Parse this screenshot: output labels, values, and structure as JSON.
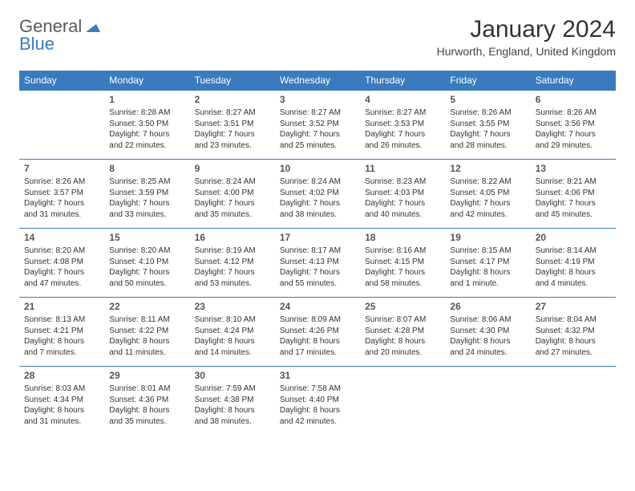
{
  "logo": {
    "general": "General",
    "blue": "Blue"
  },
  "title": {
    "month": "January 2024",
    "location": "Hurworth, England, United Kingdom"
  },
  "colors": {
    "accent": "#3a7bbf",
    "text": "#333333",
    "headerText": "#ffffff"
  },
  "dayHeaders": [
    "Sunday",
    "Monday",
    "Tuesday",
    "Wednesday",
    "Thursday",
    "Friday",
    "Saturday"
  ],
  "weeks": [
    [
      null,
      {
        "n": "1",
        "sr": "Sunrise: 8:28 AM",
        "ss": "Sunset: 3:50 PM",
        "d1": "Daylight: 7 hours",
        "d2": "and 22 minutes."
      },
      {
        "n": "2",
        "sr": "Sunrise: 8:27 AM",
        "ss": "Sunset: 3:51 PM",
        "d1": "Daylight: 7 hours",
        "d2": "and 23 minutes."
      },
      {
        "n": "3",
        "sr": "Sunrise: 8:27 AM",
        "ss": "Sunset: 3:52 PM",
        "d1": "Daylight: 7 hours",
        "d2": "and 25 minutes."
      },
      {
        "n": "4",
        "sr": "Sunrise: 8:27 AM",
        "ss": "Sunset: 3:53 PM",
        "d1": "Daylight: 7 hours",
        "d2": "and 26 minutes."
      },
      {
        "n": "5",
        "sr": "Sunrise: 8:26 AM",
        "ss": "Sunset: 3:55 PM",
        "d1": "Daylight: 7 hours",
        "d2": "and 28 minutes."
      },
      {
        "n": "6",
        "sr": "Sunrise: 8:26 AM",
        "ss": "Sunset: 3:56 PM",
        "d1": "Daylight: 7 hours",
        "d2": "and 29 minutes."
      }
    ],
    [
      {
        "n": "7",
        "sr": "Sunrise: 8:26 AM",
        "ss": "Sunset: 3:57 PM",
        "d1": "Daylight: 7 hours",
        "d2": "and 31 minutes."
      },
      {
        "n": "8",
        "sr": "Sunrise: 8:25 AM",
        "ss": "Sunset: 3:59 PM",
        "d1": "Daylight: 7 hours",
        "d2": "and 33 minutes."
      },
      {
        "n": "9",
        "sr": "Sunrise: 8:24 AM",
        "ss": "Sunset: 4:00 PM",
        "d1": "Daylight: 7 hours",
        "d2": "and 35 minutes."
      },
      {
        "n": "10",
        "sr": "Sunrise: 8:24 AM",
        "ss": "Sunset: 4:02 PM",
        "d1": "Daylight: 7 hours",
        "d2": "and 38 minutes."
      },
      {
        "n": "11",
        "sr": "Sunrise: 8:23 AM",
        "ss": "Sunset: 4:03 PM",
        "d1": "Daylight: 7 hours",
        "d2": "and 40 minutes."
      },
      {
        "n": "12",
        "sr": "Sunrise: 8:22 AM",
        "ss": "Sunset: 4:05 PM",
        "d1": "Daylight: 7 hours",
        "d2": "and 42 minutes."
      },
      {
        "n": "13",
        "sr": "Sunrise: 8:21 AM",
        "ss": "Sunset: 4:06 PM",
        "d1": "Daylight: 7 hours",
        "d2": "and 45 minutes."
      }
    ],
    [
      {
        "n": "14",
        "sr": "Sunrise: 8:20 AM",
        "ss": "Sunset: 4:08 PM",
        "d1": "Daylight: 7 hours",
        "d2": "and 47 minutes."
      },
      {
        "n": "15",
        "sr": "Sunrise: 8:20 AM",
        "ss": "Sunset: 4:10 PM",
        "d1": "Daylight: 7 hours",
        "d2": "and 50 minutes."
      },
      {
        "n": "16",
        "sr": "Sunrise: 8:19 AM",
        "ss": "Sunset: 4:12 PM",
        "d1": "Daylight: 7 hours",
        "d2": "and 53 minutes."
      },
      {
        "n": "17",
        "sr": "Sunrise: 8:17 AM",
        "ss": "Sunset: 4:13 PM",
        "d1": "Daylight: 7 hours",
        "d2": "and 55 minutes."
      },
      {
        "n": "18",
        "sr": "Sunrise: 8:16 AM",
        "ss": "Sunset: 4:15 PM",
        "d1": "Daylight: 7 hours",
        "d2": "and 58 minutes."
      },
      {
        "n": "19",
        "sr": "Sunrise: 8:15 AM",
        "ss": "Sunset: 4:17 PM",
        "d1": "Daylight: 8 hours",
        "d2": "and 1 minute."
      },
      {
        "n": "20",
        "sr": "Sunrise: 8:14 AM",
        "ss": "Sunset: 4:19 PM",
        "d1": "Daylight: 8 hours",
        "d2": "and 4 minutes."
      }
    ],
    [
      {
        "n": "21",
        "sr": "Sunrise: 8:13 AM",
        "ss": "Sunset: 4:21 PM",
        "d1": "Daylight: 8 hours",
        "d2": "and 7 minutes."
      },
      {
        "n": "22",
        "sr": "Sunrise: 8:11 AM",
        "ss": "Sunset: 4:22 PM",
        "d1": "Daylight: 8 hours",
        "d2": "and 11 minutes."
      },
      {
        "n": "23",
        "sr": "Sunrise: 8:10 AM",
        "ss": "Sunset: 4:24 PM",
        "d1": "Daylight: 8 hours",
        "d2": "and 14 minutes."
      },
      {
        "n": "24",
        "sr": "Sunrise: 8:09 AM",
        "ss": "Sunset: 4:26 PM",
        "d1": "Daylight: 8 hours",
        "d2": "and 17 minutes."
      },
      {
        "n": "25",
        "sr": "Sunrise: 8:07 AM",
        "ss": "Sunset: 4:28 PM",
        "d1": "Daylight: 8 hours",
        "d2": "and 20 minutes."
      },
      {
        "n": "26",
        "sr": "Sunrise: 8:06 AM",
        "ss": "Sunset: 4:30 PM",
        "d1": "Daylight: 8 hours",
        "d2": "and 24 minutes."
      },
      {
        "n": "27",
        "sr": "Sunrise: 8:04 AM",
        "ss": "Sunset: 4:32 PM",
        "d1": "Daylight: 8 hours",
        "d2": "and 27 minutes."
      }
    ],
    [
      {
        "n": "28",
        "sr": "Sunrise: 8:03 AM",
        "ss": "Sunset: 4:34 PM",
        "d1": "Daylight: 8 hours",
        "d2": "and 31 minutes."
      },
      {
        "n": "29",
        "sr": "Sunrise: 8:01 AM",
        "ss": "Sunset: 4:36 PM",
        "d1": "Daylight: 8 hours",
        "d2": "and 35 minutes."
      },
      {
        "n": "30",
        "sr": "Sunrise: 7:59 AM",
        "ss": "Sunset: 4:38 PM",
        "d1": "Daylight: 8 hours",
        "d2": "and 38 minutes."
      },
      {
        "n": "31",
        "sr": "Sunrise: 7:58 AM",
        "ss": "Sunset: 4:40 PM",
        "d1": "Daylight: 8 hours",
        "d2": "and 42 minutes."
      },
      null,
      null,
      null
    ]
  ]
}
